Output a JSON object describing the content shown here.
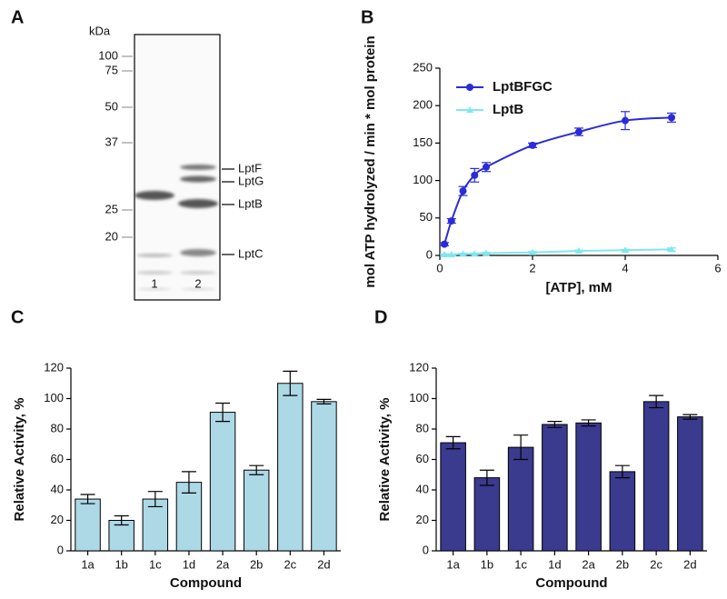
{
  "chart_data": [
    {
      "type": "gel",
      "panel_label": "A",
      "y_label": "kDa",
      "markers": [
        100,
        75,
        50,
        37,
        25,
        20
      ],
      "lanes": [
        "1",
        "2"
      ],
      "band_labels": [
        "LptF",
        "LptG",
        "LptB",
        "LptC"
      ]
    },
    {
      "type": "scatter",
      "panel_label": "B",
      "x_label": "[ATP], mM",
      "y_label": "mol ATP hydrolyzed / min * mol protein",
      "x": [
        0.1,
        0.25,
        0.5,
        0.75,
        1,
        2,
        3,
        4,
        5
      ],
      "series": [
        {
          "name": "LptBFGC",
          "color": "#2b2bd9",
          "values": [
            15,
            46,
            86,
            107,
            118,
            147,
            165,
            180,
            184
          ],
          "errors": [
            2,
            3,
            6,
            9,
            6,
            3,
            5,
            12,
            6
          ]
        },
        {
          "name": "LptB",
          "color": "#7fe8ee",
          "values": [
            1,
            1,
            2,
            2,
            3,
            4,
            6,
            7,
            8
          ],
          "errors": [
            1,
            1,
            1,
            1,
            1,
            1,
            1,
            1,
            2
          ]
        }
      ],
      "xlim": [
        0,
        6
      ],
      "xticks": [
        0,
        2,
        4,
        6
      ],
      "ylim": [
        0,
        250
      ],
      "yticks": [
        0,
        50,
        100,
        150,
        200,
        250
      ],
      "legend": "upper left"
    },
    {
      "type": "bar",
      "panel_label": "C",
      "x_label": "Compound",
      "y_label": "Relative Activity, %",
      "categories": [
        "1a",
        "1b",
        "1c",
        "1d",
        "2a",
        "2b",
        "2c",
        "2d"
      ],
      "values": [
        34,
        20,
        34,
        45,
        91,
        53,
        110,
        98
      ],
      "errors": [
        3,
        3,
        5,
        7,
        6,
        3,
        8,
        1.5
      ],
      "color": "#add8e6",
      "ylim": [
        0,
        120
      ],
      "yticks": [
        0,
        20,
        40,
        60,
        80,
        100,
        120
      ]
    },
    {
      "type": "bar",
      "panel_label": "D",
      "x_label": "Compound",
      "y_label": "Relative Activity, %",
      "categories": [
        "1a",
        "1b",
        "1c",
        "1d",
        "2a",
        "2b",
        "2c",
        "2d"
      ],
      "values": [
        71,
        48,
        68,
        83,
        84,
        52,
        98,
        88
      ],
      "errors": [
        4,
        5,
        8,
        2,
        2,
        4,
        4,
        1.5
      ],
      "color": "#3a3a8f",
      "ylim": [
        0,
        120
      ],
      "yticks": [
        0,
        20,
        40,
        60,
        80,
        100,
        120
      ]
    }
  ]
}
